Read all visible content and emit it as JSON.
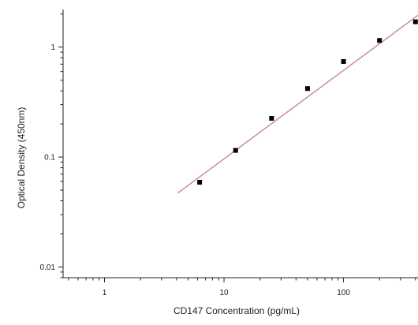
{
  "chart_data": {
    "type": "scatter",
    "title": "",
    "xlabel": "CD147 Concentration (pg/mL)",
    "ylabel": "Optical Density (450nm)",
    "x_scale": "log",
    "y_scale": "log",
    "xlim": [
      0.45,
      420
    ],
    "ylim": [
      0.008,
      2.2
    ],
    "x_ticks": [
      {
        "value": 1,
        "label": "1"
      },
      {
        "value": 10,
        "label": "10"
      },
      {
        "value": 100,
        "label": "100"
      }
    ],
    "y_ticks": [
      {
        "value": 0.01,
        "label": "0.01"
      },
      {
        "value": 0.1,
        "label": "0.1"
      },
      {
        "value": 1,
        "label": "1"
      }
    ],
    "grid": false,
    "series": [
      {
        "values": [
          {
            "x": 6.25,
            "y": 0.059
          },
          {
            "x": 12.5,
            "y": 0.115
          },
          {
            "x": 25,
            "y": 0.225
          },
          {
            "x": 50,
            "y": 0.42
          },
          {
            "x": 100,
            "y": 0.74
          },
          {
            "x": 200,
            "y": 1.15
          },
          {
            "x": 400,
            "y": 1.7
          }
        ]
      }
    ],
    "fit_line": {
      "x": [
        4.1,
        420
      ],
      "y": [
        0.047,
        1.95
      ],
      "color": "#c48a8a"
    },
    "colors": {
      "marker": "#000000",
      "axis": "#222222"
    }
  }
}
